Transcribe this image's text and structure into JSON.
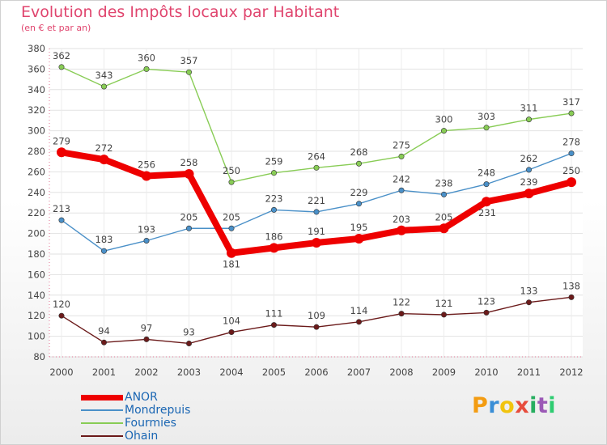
{
  "header": {
    "title": "Evolution des Impôts locaux par Habitant",
    "subtitle": "(en € et par an)"
  },
  "logo": {
    "text": "Proxiti",
    "colors": [
      "#f39c12",
      "#3a8ed6",
      "#f1c40f",
      "#e74c3c",
      "#27ae60",
      "#9b59b6",
      "#2ecc71"
    ]
  },
  "chart_data": {
    "type": "line",
    "title": "Evolution des Impôts locaux par Habitant",
    "subtitle": "(en € et par an)",
    "x": [
      "2000",
      "2001",
      "2002",
      "2003",
      "2004",
      "2005",
      "2006",
      "2007",
      "2008",
      "2009",
      "2010",
      "2011",
      "2012"
    ],
    "ylim": [
      80,
      380
    ],
    "yticks": [
      80,
      100,
      120,
      140,
      160,
      180,
      200,
      220,
      240,
      260,
      280,
      300,
      320,
      340,
      360,
      380
    ],
    "grid": true,
    "legend_position": "bottom-left",
    "series": [
      {
        "name": "ANOR",
        "color": "#ee0000",
        "values": [
          279,
          272,
          256,
          258,
          181,
          186,
          191,
          195,
          203,
          205,
          231,
          239,
          250
        ]
      },
      {
        "name": "Mondrepuis",
        "color": "#4a90c8",
        "values": [
          213,
          183,
          193,
          205,
          205,
          223,
          221,
          229,
          242,
          238,
          248,
          262,
          278
        ]
      },
      {
        "name": "Fourmies",
        "color": "#88cc55",
        "values": [
          362,
          343,
          360,
          357,
          250,
          259,
          264,
          268,
          275,
          300,
          303,
          311,
          317
        ]
      },
      {
        "name": "Ohain",
        "color": "#6b1a1a",
        "values": [
          120,
          94,
          97,
          93,
          104,
          111,
          109,
          114,
          122,
          121,
          123,
          133,
          138
        ]
      }
    ]
  }
}
